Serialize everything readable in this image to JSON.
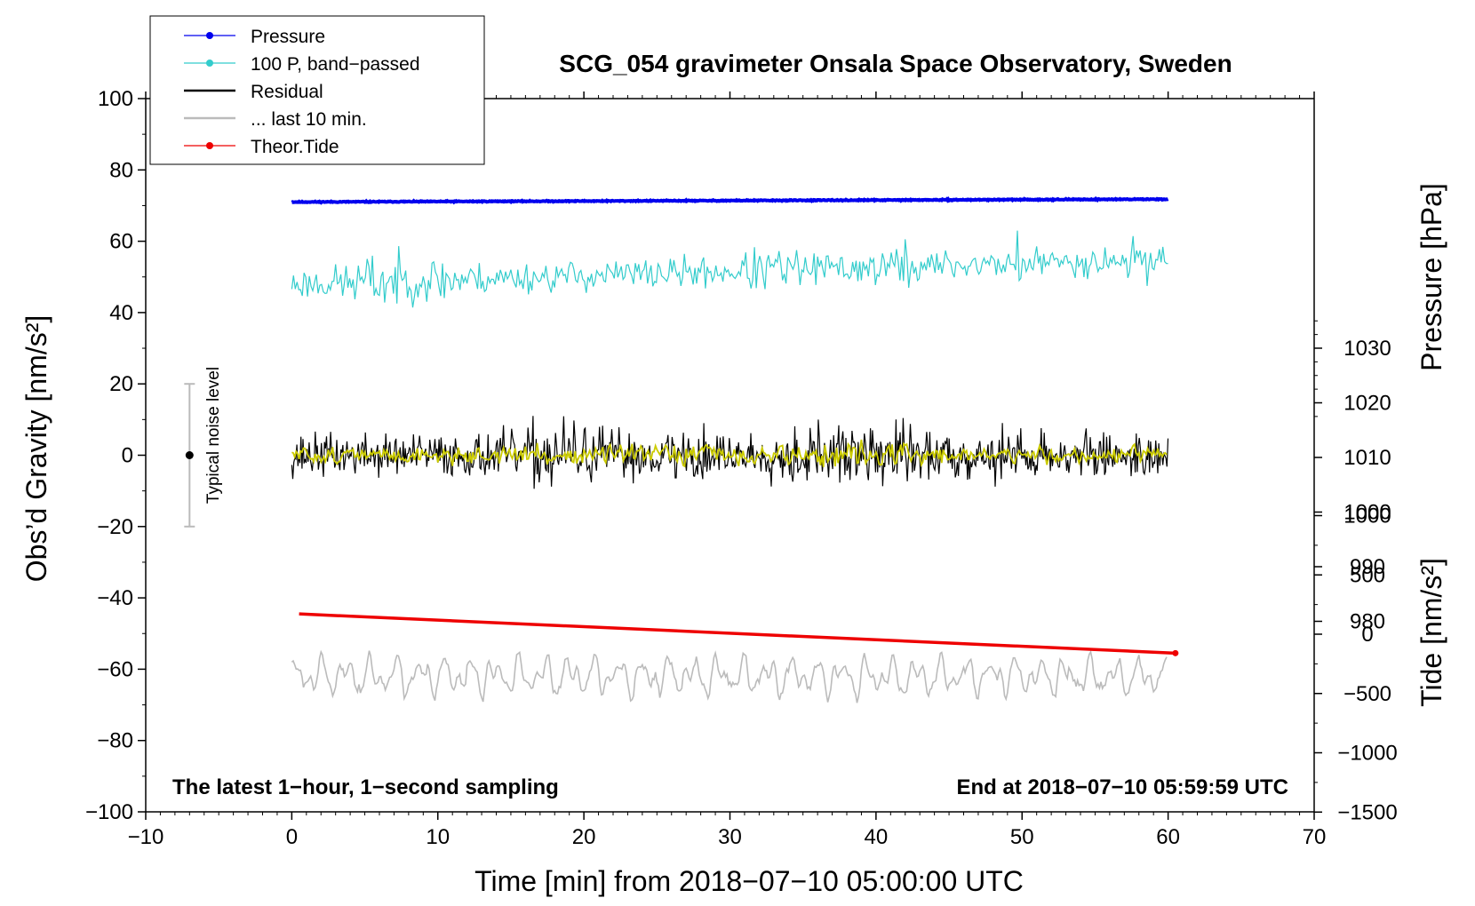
{
  "chart_data": {
    "type": "line",
    "title": "SCG_054 gravimeter Onsala Space Observatory, Sweden",
    "xlabel": "Time [min] from 2018−07−10 05:00:00 UTC",
    "ylabel_left": "Obs’d Gravity [nm/s²]",
    "ylabel_right_pressure": "Pressure [hPa]",
    "ylabel_right_tide": "Tide [nm/s²]",
    "xlim": [
      -10,
      70
    ],
    "ylim": [
      -100,
      100
    ],
    "pressure_axis": {
      "ticks": [
        980,
        990,
        1000,
        1010,
        1020,
        1030
      ],
      "tick_labels": [
        "980",
        "990",
        "1000",
        "1010",
        "1020",
        "1030"
      ]
    },
    "tide_axis": {
      "ticks": [
        -1500,
        -1000,
        -500,
        0,
        500,
        1000
      ],
      "tick_labels": [
        "−1500",
        "−1000",
        "−500",
        "0",
        "500",
        "1000"
      ]
    },
    "x_ticks": [
      -10,
      0,
      10,
      20,
      30,
      40,
      50,
      60,
      70
    ],
    "x_tick_labels": [
      "−10",
      "0",
      "10",
      "20",
      "30",
      "40",
      "50",
      "60",
      "70"
    ],
    "y_ticks": [
      -100,
      -80,
      -60,
      -40,
      -20,
      0,
      20,
      40,
      60,
      80,
      100
    ],
    "y_tick_labels": [
      "−100",
      "−80",
      "−60",
      "−40",
      "−20",
      "0",
      "20",
      "40",
      "60",
      "80",
      "100"
    ],
    "legend": [
      {
        "name": "Pressure",
        "color": "#0000ee",
        "marker": true
      },
      {
        "name": "100 P, band−passed",
        "color": "#33cccc",
        "marker": true
      },
      {
        "name": "Residual",
        "color": "#000000",
        "marker": false
      },
      {
        "name": "... last 10 min.",
        "color": "#bbbbbb",
        "marker": false
      },
      {
        "name": "Theor.Tide",
        "color": "#ee0000",
        "marker": true
      }
    ],
    "series": [
      {
        "name": "Pressure",
        "color": "#0000ee",
        "x_range": [
          0,
          60
        ],
        "approx_level": 71,
        "trend": [
          71,
          71.8
        ]
      },
      {
        "name": "100 P, band−passed",
        "color": "#33cccc",
        "x_range": [
          0,
          60
        ],
        "approx_center": 49,
        "trend": [
          48,
          55
        ],
        "approx_amplitude": 5
      },
      {
        "name": "Residual",
        "color": "#000000",
        "x_range": [
          0,
          60
        ],
        "approx_center": 0,
        "approx_amplitude": 6
      },
      {
        "name": "Residual (smoothed)",
        "color": "#cccc00",
        "x_range": [
          0,
          60
        ],
        "approx_center": 0,
        "approx_amplitude": 2.5
      },
      {
        "name": "... last 10 min.",
        "color": "#bbbbbb",
        "x_range": [
          0,
          60
        ],
        "approx_center": -62,
        "approx_amplitude": 5
      },
      {
        "name": "Theor.Tide",
        "color": "#ee0000",
        "x_range": [
          0.5,
          60.5
        ],
        "values_at_ends": [
          -44.5,
          -55.5
        ]
      }
    ],
    "noise_indicator": {
      "label": "Typical noise level",
      "x": -7,
      "center": 0,
      "range": [
        -20,
        20
      ]
    },
    "annotation_left": "The latest 1−hour, 1−second sampling",
    "annotation_right": "End at 2018−07−10 05:59:59 UTC"
  }
}
